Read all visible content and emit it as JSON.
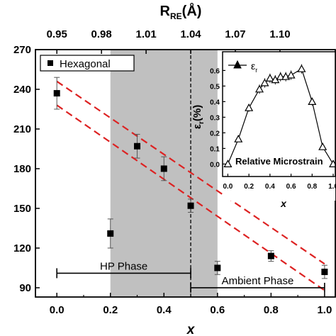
{
  "chart_data": [
    {
      "type": "scatter",
      "title": "",
      "xlabel": "x",
      "top_xlabel_main": "R",
      "top_xlabel_sub": "RE",
      "top_xlabel_unit": "(Å)",
      "ylabel": "",
      "xlim": [
        -0.08,
        1.04
      ],
      "ylim": [
        83,
        270
      ],
      "x_ticks": [
        "0.0",
        "0.2",
        "0.4",
        "0.6",
        "0.8",
        "1.0"
      ],
      "x_tick_values": [
        0.0,
        0.2,
        0.4,
        0.6,
        0.8,
        1.0
      ],
      "y_ticks": [
        "90",
        "120",
        "150",
        "180",
        "210",
        "240",
        "270"
      ],
      "y_tick_values": [
        90,
        120,
        150,
        180,
        210,
        240,
        270
      ],
      "top_ticks": [
        "0.95",
        "0.98",
        "1.01",
        "1.04",
        "1.07",
        "1.10"
      ],
      "top_tick_values": [
        0.95,
        0.98,
        1.01,
        1.04,
        1.07,
        1.1
      ],
      "top_axis_mapping": {
        "x_at_0": 0.95,
        "x_at_0_5": 1.04
      },
      "legend": {
        "label": "Hexagonal",
        "placement": "top-left"
      },
      "series": [
        {
          "name": "Hexagonal",
          "marker": "square",
          "color": "#000000",
          "x": [
            0.0,
            0.2,
            0.3,
            0.4,
            0.5,
            0.6,
            0.8,
            1.0
          ],
          "y": [
            237,
            131,
            197,
            180,
            152,
            105,
            114,
            102
          ],
          "err": [
            12,
            11,
            9,
            9,
            5,
            5,
            4,
            5
          ]
        }
      ],
      "dashed_bands": {
        "color": "#dd2222",
        "upper": {
          "x": [
            0.0,
            1.0
          ],
          "y": [
            246,
            108
          ]
        },
        "lower": {
          "x": [
            0.0,
            1.0
          ],
          "y": [
            228,
            88
          ]
        }
      },
      "shaded_region": {
        "x": [
          0.2,
          0.6
        ],
        "color": "#c0c0c0"
      },
      "vertical_dashed_line": {
        "x": 0.5
      },
      "phase_brackets": [
        {
          "label": "HP Phase",
          "x": [
            0.0,
            0.5
          ],
          "y": 101
        },
        {
          "label": "Ambient Phase",
          "x": [
            0.5,
            1.0
          ],
          "y": 90
        }
      ]
    },
    {
      "type": "line",
      "title": "",
      "xlabel": "x",
      "ylabel_main": "ε",
      "ylabel_sub": "r",
      "ylabel_unit": "(%)",
      "xlim": [
        -0.05,
        1.02
      ],
      "ylim": [
        -0.08,
        0.72
      ],
      "x_ticks": [
        "0.0",
        "0.2",
        "0.4",
        "0.6",
        "0.8",
        "1.0"
      ],
      "x_tick_values": [
        0.0,
        0.2,
        0.4,
        0.6,
        0.8,
        1.0
      ],
      "y_ticks": [
        "0.0",
        "0.1",
        "0.2",
        "0.3",
        "0.4",
        "0.5",
        "0.6"
      ],
      "y_tick_values": [
        0.0,
        0.1,
        0.2,
        0.3,
        0.4,
        0.5,
        0.6
      ],
      "annotation": "Relative Microstrain",
      "legend": {
        "label_main": "ε",
        "label_sub": "r",
        "placement": "top-left"
      },
      "series": [
        {
          "name": "εr",
          "marker": "triangle",
          "x": [
            0.0,
            0.1,
            0.2,
            0.3,
            0.35,
            0.4,
            0.45,
            0.5,
            0.55,
            0.6,
            0.7,
            0.8,
            0.9,
            1.0
          ],
          "y": [
            0.0,
            0.16,
            0.36,
            0.48,
            0.52,
            0.55,
            0.54,
            0.56,
            0.56,
            0.57,
            0.61,
            0.4,
            0.11,
            0.0
          ],
          "err": [
            0.015,
            0.02,
            0.025,
            0.03,
            0.03,
            0.03,
            0.03,
            0.03,
            0.03,
            0.03,
            0.03,
            0.025,
            0.02,
            0.015
          ]
        }
      ]
    }
  ]
}
